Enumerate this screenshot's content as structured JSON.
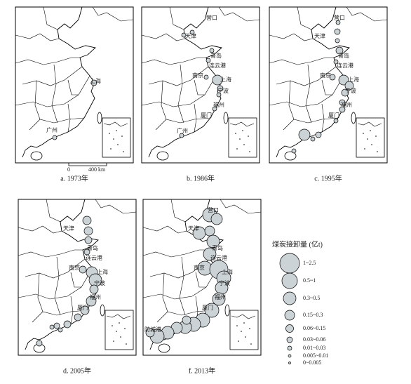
{
  "panels": [
    {
      "caption": "a. 1973年",
      "cities": [
        "上海",
        "广州"
      ]
    },
    {
      "caption": "b. 1986年",
      "cities": [
        "营口",
        "天津",
        "青岛",
        "连云港",
        "南京",
        "上海",
        "宁波",
        "福州",
        "厦门",
        "广州"
      ]
    },
    {
      "caption": "c. 1995年",
      "cities": [
        "营口",
        "天津",
        "青岛",
        "连云港",
        "南京",
        "上海",
        "宁波",
        "福州",
        "厦门"
      ]
    },
    {
      "caption": "d. 2005年",
      "cities": [
        "天津",
        "青岛",
        "连云港",
        "南京",
        "上海",
        "宁波",
        "福州",
        "厦门"
      ]
    },
    {
      "caption": "f. 2013年",
      "cities": [
        "营口",
        "天津",
        "青岛",
        "连云港",
        "南京",
        "上海",
        "宁波",
        "福州",
        "厦门",
        "防城港"
      ]
    }
  ],
  "scale_bar": {
    "zero": "0",
    "distance": "400 km"
  },
  "legend": {
    "title": "煤炭接卸量 (亿t)",
    "classes": [
      "1~2.5",
      "0.5~1",
      "0.3~0.5",
      "0.15~0.3",
      "0.06~0.15",
      "0.03~0.06",
      "0.01~0.03",
      "0.005~0.01",
      "0~0.005"
    ]
  }
}
